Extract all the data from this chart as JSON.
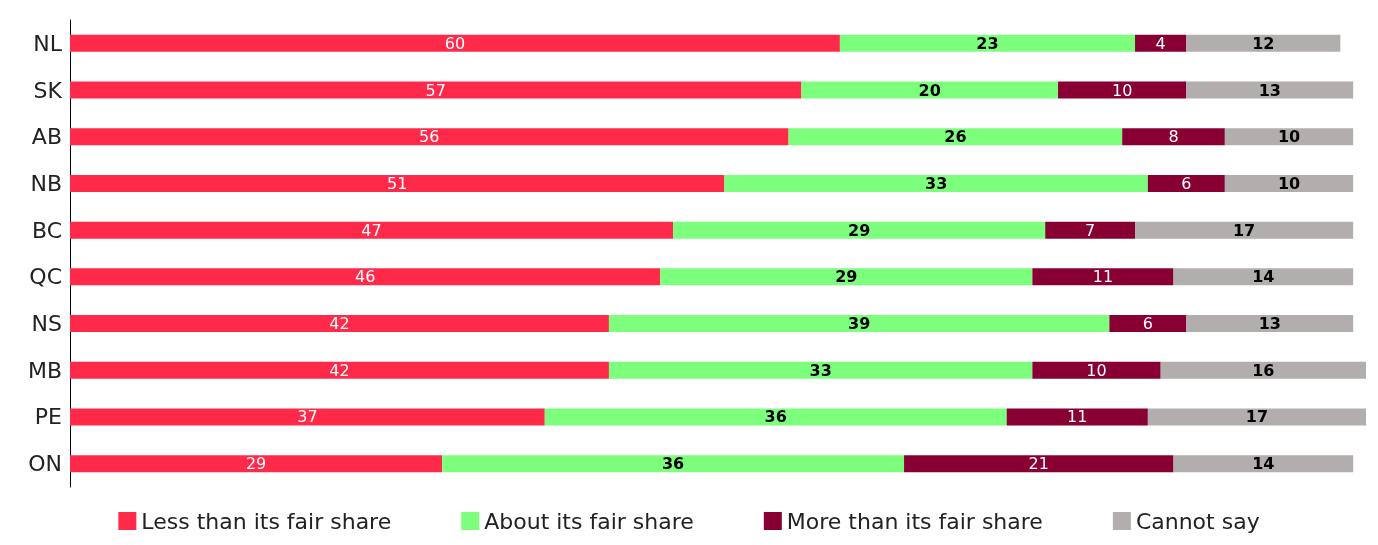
{
  "chart_data": {
    "type": "bar",
    "orientation": "horizontal",
    "stacked": true,
    "data_labels": true,
    "legend": "bottom",
    "grid": false,
    "tick_labels": "y",
    "xlim": [
      0,
      101
    ],
    "categories": [
      "NL",
      "SK",
      "AB",
      "NB",
      "BC",
      "QC",
      "NS",
      "MB",
      "PE",
      "ON"
    ],
    "series": [
      {
        "name": "Less than its fair share",
        "color": "#ff2a4a",
        "values": [
          60,
          57,
          56,
          51,
          47,
          46,
          42,
          42,
          37,
          29
        ]
      },
      {
        "name": "About its fair share",
        "color": "#7dff7d",
        "values": [
          23,
          20,
          26,
          33,
          29,
          29,
          39,
          33,
          36,
          36
        ]
      },
      {
        "name": "More than its fair share",
        "color": "#880033",
        "values": [
          4,
          10,
          8,
          6,
          7,
          11,
          6,
          10,
          11,
          21
        ]
      },
      {
        "name": "Cannot say",
        "color": "#b3aeae",
        "values": [
          12,
          13,
          10,
          10,
          17,
          14,
          13,
          16,
          17,
          14
        ]
      }
    ]
  }
}
